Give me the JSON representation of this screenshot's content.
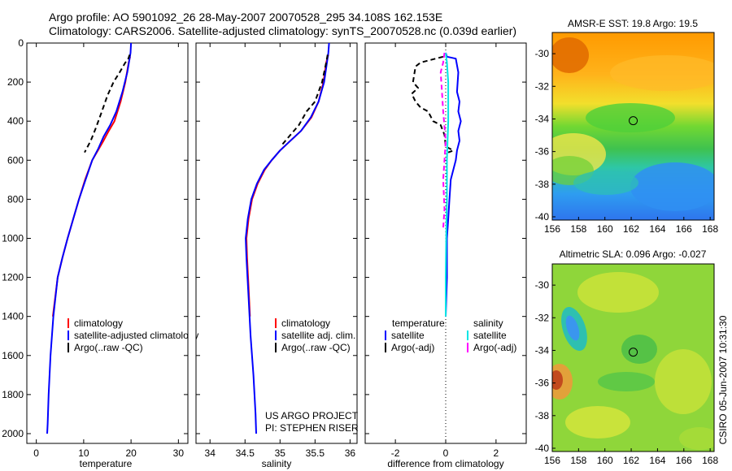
{
  "header": {
    "line1": "Argo profile: AO 5901092_26 28-May-2007 20070528_295 34.108S 162.153E",
    "line2": "Climatology: CARS2006. Satellite-adjusted climatology: synTS_20070528.nc (0.039d earlier)"
  },
  "credit": "CSIRO 05-Jun-2007 10:31:30",
  "project": {
    "line1": "US ARGO PROJECT",
    "line2": "PI: STEPHEN RISER"
  },
  "colors": {
    "climatology": "#ff0000",
    "satellite": "#0000ff",
    "argo": "#000000",
    "sal_satellite": "#00e5e5",
    "sal_argo": "#ff00ff"
  },
  "chart_data": [
    {
      "type": "line",
      "id": "temperature",
      "xlabel": "temperature",
      "xlim": [
        -2,
        32
      ],
      "ylim": [
        0,
        2050
      ],
      "xticks": [
        "0",
        "10",
        "20",
        "30"
      ],
      "xtick_values": [
        0,
        10,
        20,
        30
      ],
      "yticks": [
        "0",
        "200",
        "400",
        "600",
        "800",
        "1000",
        "1200",
        "1400",
        "1600",
        "1800",
        "2000"
      ],
      "ytick_values": [
        0,
        200,
        400,
        600,
        800,
        1000,
        1200,
        1400,
        1600,
        1800,
        2000
      ],
      "legend": [
        "climatology",
        "satellite-adjusted climatology",
        "Argo(..raw -QC)"
      ],
      "series": [
        {
          "name": "climatology",
          "color": "#ff0000",
          "x": [
            19.8,
            19.5,
            18.8,
            17.8,
            16.5,
            15.3,
            14.2,
            13.0,
            11.8,
            10.3,
            9.0,
            7.8,
            6.6,
            5.5,
            4.5,
            3.5
          ],
          "y": [
            70,
            100,
            200,
            300,
            400,
            450,
            500,
            550,
            600,
            700,
            800,
            900,
            1000,
            1100,
            1200,
            1400
          ]
        },
        {
          "name": "satellite",
          "color": "#0000ff",
          "x": [
            20.0,
            19.9,
            19.2,
            18.2,
            16.9,
            15.6,
            14.2,
            13.1,
            11.8,
            10.4,
            9.0,
            7.8,
            6.6,
            5.5,
            4.5,
            3.6,
            3.0,
            2.6,
            2.4,
            2.3
          ],
          "y": [
            0,
            50,
            150,
            250,
            350,
            420,
            480,
            540,
            600,
            700,
            800,
            900,
            1000,
            1100,
            1200,
            1400,
            1600,
            1800,
            1950,
            2000
          ]
        },
        {
          "name": "Argo",
          "color": "#000000",
          "dash": true,
          "x": [
            19.7,
            19.3,
            18.8,
            17.6,
            16.3,
            15.0,
            13.7,
            12.5,
            11.5,
            10.2
          ],
          "y": [
            60,
            90,
            100,
            150,
            200,
            270,
            360,
            440,
            500,
            560
          ]
        }
      ]
    },
    {
      "type": "line",
      "id": "salinity",
      "xlabel": "salinity",
      "xlim": [
        33.8,
        36.1
      ],
      "ylim": [
        0,
        2050
      ],
      "xticks": [
        "34",
        "34.5",
        "35",
        "35.5",
        "36"
      ],
      "xtick_values": [
        34,
        34.5,
        35,
        35.5,
        36
      ],
      "legend": [
        "climatology",
        "satellite adj. clim.",
        "Argo(..raw -QC)"
      ],
      "series": [
        {
          "name": "climatology",
          "color": "#ff0000",
          "x": [
            35.69,
            35.66,
            35.62,
            35.55,
            35.45,
            35.3,
            35.15,
            35.0,
            34.88,
            34.78,
            34.68,
            34.6,
            34.55,
            34.52,
            34.53,
            34.55,
            34.57
          ],
          "y": [
            60,
            100,
            200,
            300,
            380,
            450,
            500,
            550,
            600,
            650,
            720,
            800,
            900,
            1000,
            1100,
            1250,
            1400
          ]
        },
        {
          "name": "satellite",
          "color": "#0000ff",
          "x": [
            35.7,
            35.69,
            35.67,
            35.63,
            35.55,
            35.44,
            35.3,
            35.15,
            35.0,
            34.88,
            34.77,
            34.67,
            34.59,
            34.54,
            34.51,
            34.52,
            34.55,
            34.58,
            34.62,
            34.65,
            34.66
          ],
          "y": [
            0,
            50,
            100,
            200,
            300,
            380,
            450,
            500,
            550,
            600,
            650,
            720,
            800,
            900,
            1000,
            1100,
            1300,
            1500,
            1700,
            1900,
            2000
          ]
        },
        {
          "name": "Argo",
          "color": "#000000",
          "dash": true,
          "x": [
            35.68,
            35.66,
            35.6,
            35.5,
            35.38,
            35.27,
            35.15,
            35.03
          ],
          "y": [
            60,
            100,
            200,
            300,
            350,
            420,
            470,
            520
          ]
        }
      ]
    },
    {
      "type": "line",
      "id": "difference",
      "xlabel": "difference from climatology",
      "xlim": [
        -3.2,
        3.2
      ],
      "ylim": [
        0,
        2050
      ],
      "xticks": [
        "-2",
        "0",
        "2"
      ],
      "xtick_values": [
        -2,
        0,
        2
      ],
      "legend_groups": [
        {
          "title": "temperature",
          "items": [
            "satellite",
            "Argo(-adj)"
          ]
        },
        {
          "title": "salinity",
          "items": [
            "satellite",
            "Argo(-adj)"
          ]
        }
      ],
      "series": [
        {
          "name": "temperature satellite",
          "color": "#0000ff",
          "x": [
            0.0,
            0.05,
            0.4,
            0.5,
            0.45,
            0.55,
            0.5,
            0.6,
            0.5,
            0.55,
            0.45,
            0.4,
            0.3,
            0.2,
            0.15,
            0.1,
            0.05,
            0.05,
            0.0
          ],
          "y": [
            50,
            70,
            80,
            150,
            250,
            300,
            350,
            400,
            450,
            500,
            550,
            600,
            650,
            700,
            800,
            900,
            1000,
            1200,
            1400
          ]
        },
        {
          "name": "temperature Argo",
          "color": "#000000",
          "dash": true,
          "x": [
            -0.1,
            -1.0,
            -1.2,
            -1.3,
            -1.1,
            -1.35,
            -1.2,
            -1.0,
            -0.7,
            -0.5,
            -0.2,
            -0.05,
            0.0,
            0.3,
            0.1
          ],
          "y": [
            70,
            100,
            120,
            200,
            230,
            260,
            300,
            330,
            350,
            400,
            420,
            470,
            530,
            550,
            560
          ]
        },
        {
          "name": "salinity satellite",
          "color": "#00e5e5",
          "x": [
            0.0,
            0.05,
            0.1,
            0.1,
            0.05,
            0.05,
            0.02,
            0.0,
            0.0
          ],
          "y": [
            50,
            100,
            200,
            400,
            600,
            800,
            1000,
            1200,
            1400
          ]
        },
        {
          "name": "salinity Argo",
          "color": "#ff00ff",
          "dash": true,
          "x": [
            -0.05,
            -0.1,
            -0.2,
            -0.15,
            -0.1,
            0.0,
            -0.05,
            -0.1,
            -0.05,
            -0.1
          ],
          "y": [
            50,
            100,
            150,
            250,
            350,
            500,
            600,
            700,
            850,
            950
          ]
        }
      ]
    },
    {
      "type": "heatmap",
      "id": "sst-map",
      "title": "AMSR-E SST: 19.8 Argo: 19.5",
      "xlim": [
        156,
        168.3
      ],
      "ylim": [
        -40.2,
        -28.7
      ],
      "xticks": [
        "156",
        "158",
        "160",
        "162",
        "164",
        "166",
        "168"
      ],
      "xtick_values": [
        156,
        158,
        160,
        162,
        164,
        166,
        168
      ],
      "yticks": [
        "-30",
        "-32",
        "-34",
        "-36",
        "-38",
        "-40"
      ],
      "ytick_values": [
        -30,
        -32,
        -34,
        -36,
        -38,
        -40
      ],
      "marker": {
        "lon": 162.153,
        "lat": -34.108
      }
    },
    {
      "type": "heatmap",
      "id": "sla-map",
      "title": "Altimetric SLA: 0.096 Argo: -0.027",
      "xlim": [
        156,
        168.3
      ],
      "ylim": [
        -40.2,
        -28.7
      ],
      "xticks": [
        "156",
        "158",
        "160",
        "162",
        "164",
        "166",
        "168"
      ],
      "xtick_values": [
        156,
        158,
        160,
        162,
        164,
        166,
        168
      ],
      "yticks": [
        "-30",
        "-32",
        "-34",
        "-36",
        "-38",
        "-40"
      ],
      "ytick_values": [
        -30,
        -32,
        -34,
        -36,
        -38,
        -40
      ],
      "marker": {
        "lon": 162.153,
        "lat": -34.108
      }
    }
  ]
}
